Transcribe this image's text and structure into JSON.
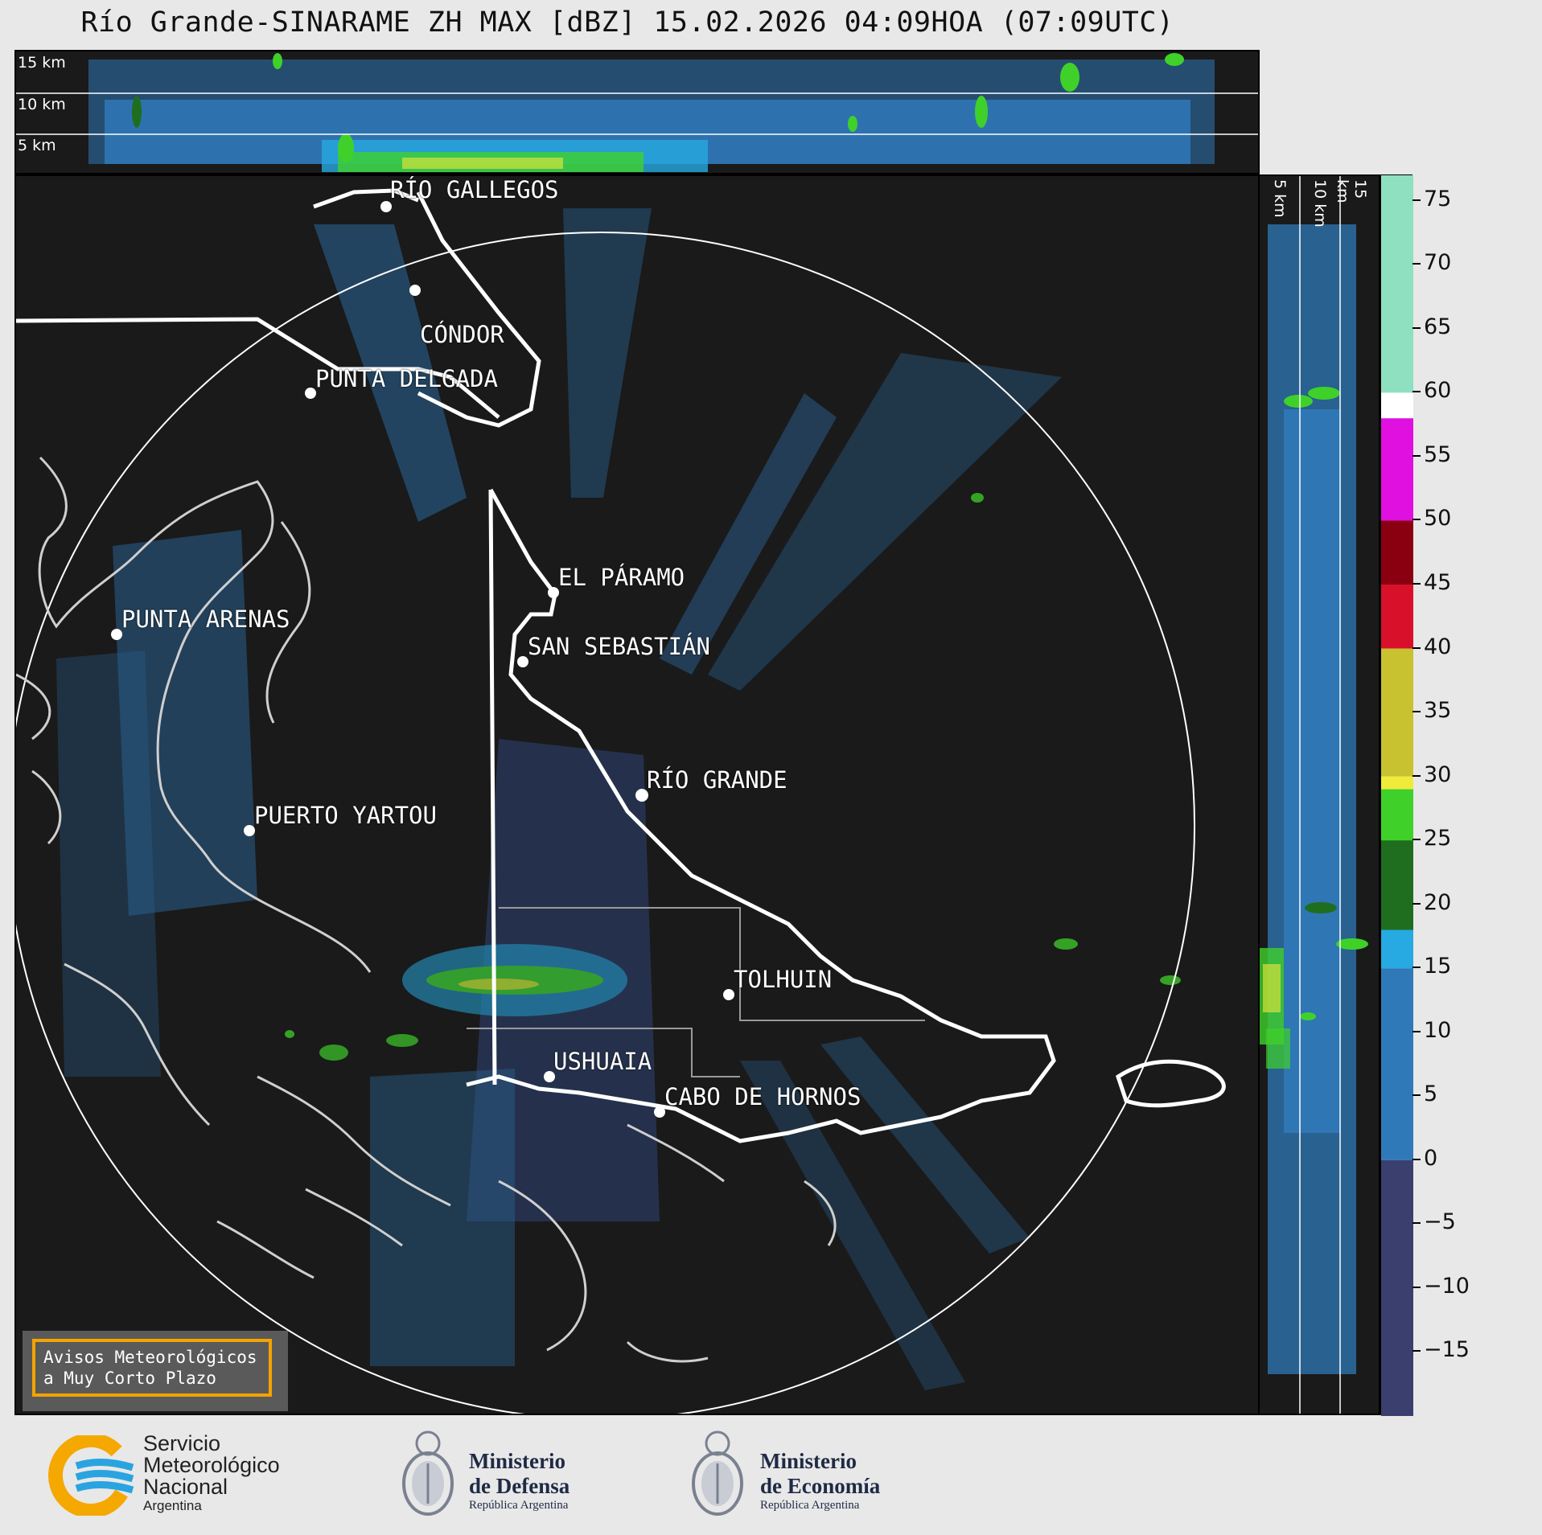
{
  "title": "Río Grande-SINARAME ZH MAX [dBZ] 15.02.2026 04:09HOA (07:09UTC)",
  "top_panel": {
    "altitude_labels": [
      "15 km",
      "10 km",
      "5 km"
    ]
  },
  "side_panel": {
    "altitude_labels": [
      "5 km",
      "10 km",
      "15 km"
    ]
  },
  "cities": {
    "rio_gallegos": "RÍO GALLEGOS",
    "condor": "CÓNDOR",
    "punta_delgada": "PUNTA DELGADA",
    "el_paramo": "EL PÁRAMO",
    "punta_arenas": "PUNTA ARENAS",
    "san_sebastian": "SAN SEBASTIÁN",
    "rio_grande": "RÍO GRANDE",
    "puerto_yartou": "PUERTO YARTOU",
    "tolhuin": "TOLHUIN",
    "ushuaia": "USHUAIA",
    "cabo_de_hornos": "CABO DE HORNOS"
  },
  "colorbar": {
    "unit": "dBZ",
    "min": -20,
    "max": 77,
    "tick_labels": [
      "75",
      "70",
      "65",
      "60",
      "55",
      "50",
      "45",
      "40",
      "35",
      "30",
      "25",
      "20",
      "15",
      "10",
      "5",
      "0",
      "−5",
      "−10",
      "−15"
    ],
    "tick_values": [
      75,
      70,
      65,
      60,
      55,
      50,
      45,
      40,
      35,
      30,
      25,
      20,
      15,
      10,
      5,
      0,
      -5,
      -10,
      -15
    ],
    "colors": {
      "low": "#3a3f6e",
      "mid_blue": "#2f79b8",
      "light_blue": "#27a9e1",
      "green": "#3fd12a",
      "dark_green": "#1f6e1f",
      "yellow": "#f0ea3a",
      "olive": "#c8c230",
      "orange": "#e08a10",
      "red": "#d8102a",
      "dark_red": "#8a0010",
      "magenta": "#e010e0",
      "purple": "#8a0090",
      "white": "#ffffff",
      "mint": "#8fe0c0"
    }
  },
  "avisos": {
    "line1": "Avisos Meteorológicos",
    "line2": "a Muy Corto Plazo"
  },
  "logos": {
    "smn_line1": "Servicio",
    "smn_line2": "Meteorológico",
    "smn_line3": "Nacional",
    "smn_line4": "Argentina",
    "defensa_line1": "Ministerio",
    "defensa_line2": "de Defensa",
    "defensa_line3": "República Argentina",
    "economia_line1": "Ministerio",
    "economia_line2": "de Economía",
    "economia_line3": "República Argentina"
  }
}
